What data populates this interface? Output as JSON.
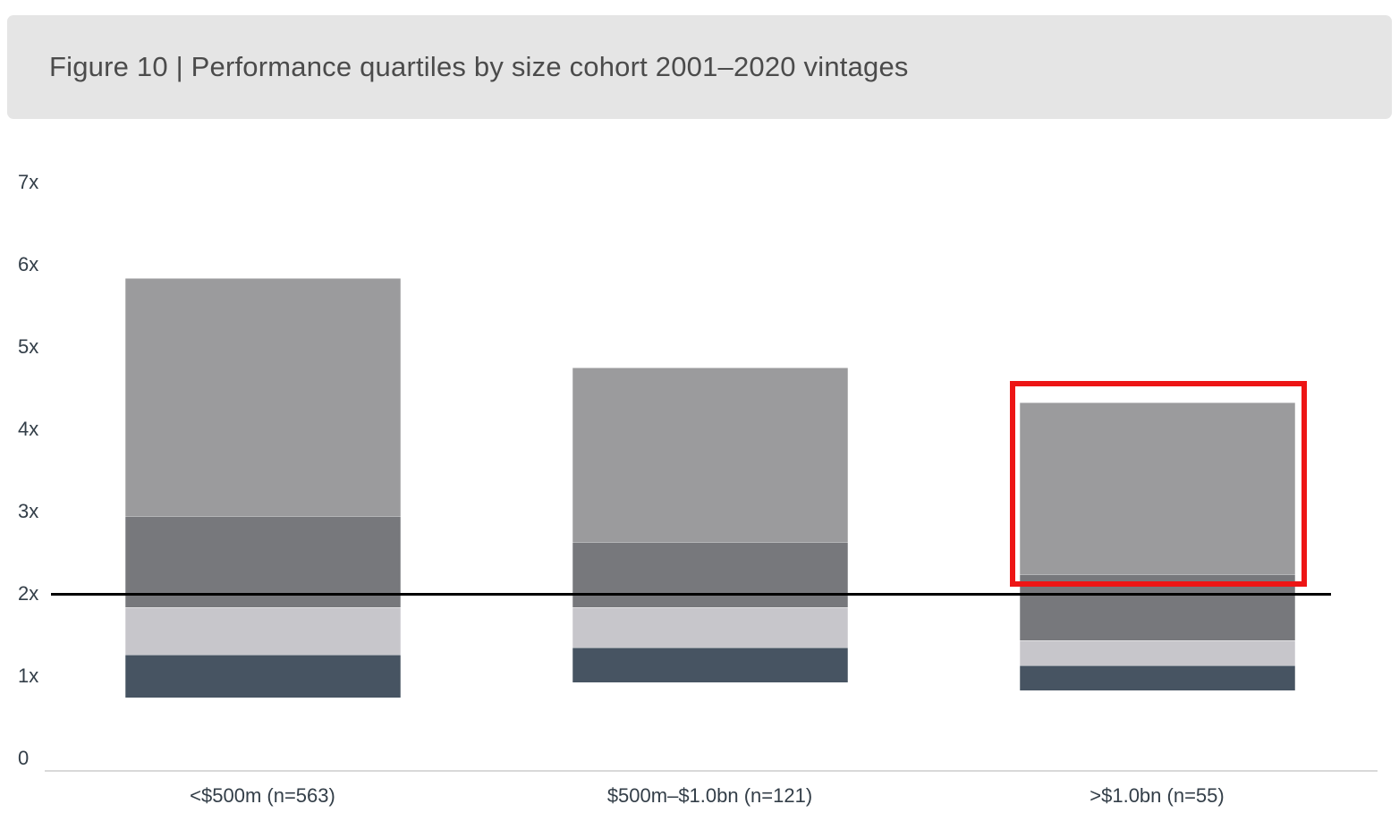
{
  "header": {
    "title": "Figure 10 | Performance quartiles by size cohort 2001–2020 vintages"
  },
  "chart_data": {
    "type": "bar",
    "subtype": "floating-stacked-quartile-bars",
    "title": "Figure 10 | Performance quartiles by size cohort 2001–2020 vintages",
    "categories": [
      "<$500m (n=563)",
      "$500m–$1.0bn (n=121)",
      ">$1.0bn (n=55)"
    ],
    "y_axis": {
      "min": 0,
      "max": 7,
      "grid": false,
      "ticks": [
        {
          "label": "7x",
          "value": 7
        },
        {
          "label": "6x",
          "value": 6
        },
        {
          "label": "5x",
          "value": 5
        },
        {
          "label": "4x",
          "value": 4
        },
        {
          "label": "3x",
          "value": 3
        },
        {
          "label": "2x",
          "value": 2
        },
        {
          "label": "1x",
          "value": 1
        },
        {
          "label": "0",
          "value": 0
        }
      ]
    },
    "bands": [
      {
        "name": "bottom-band",
        "color": "#475462",
        "bounds": [
          [
            0.74,
            1.26
          ],
          [
            0.92,
            1.35
          ],
          [
            0.83,
            1.13
          ]
        ]
      },
      {
        "name": "lower-mid-band",
        "color": "#c7c6cb",
        "bounds": [
          [
            1.26,
            1.84
          ],
          [
            1.35,
            1.84
          ],
          [
            1.13,
            1.43
          ]
        ]
      },
      {
        "name": "upper-mid-band",
        "color": "#77787c",
        "bounds": [
          [
            1.84,
            2.95
          ],
          [
            1.84,
            2.63
          ],
          [
            1.43,
            2.24
          ]
        ]
      },
      {
        "name": "top-band",
        "color": "#9b9b9d",
        "bounds": [
          [
            2.95,
            5.84
          ],
          [
            2.63,
            4.75
          ],
          [
            2.24,
            4.33
          ]
        ]
      }
    ],
    "reference_line": {
      "value": 2.0,
      "color": "#000000"
    },
    "highlight_box": {
      "category_index": 2,
      "value_from": 2.09,
      "value_to": 4.59,
      "color": "#ed1515"
    },
    "axis_line_color": "#d9d9d9",
    "text_color": "#333e48",
    "legend": "none"
  }
}
